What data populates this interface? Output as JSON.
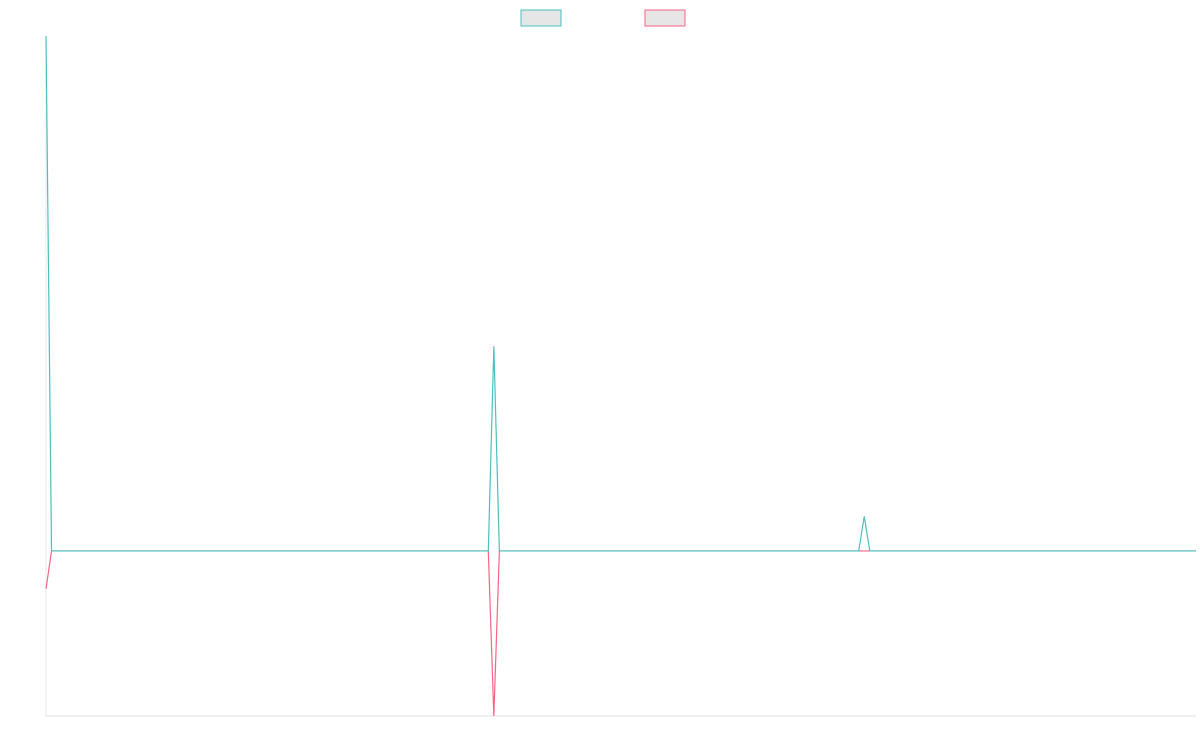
{
  "chart_data": {
    "type": "line",
    "x": [
      0,
      1,
      80,
      81,
      82,
      147,
      148,
      149,
      208
    ],
    "xlim": [
      0,
      208
    ],
    "ylim": [
      -100,
      312
    ],
    "legend": "top",
    "series": [
      {
        "color": "#ff6384",
        "values": [
          -23,
          0,
          0,
          -100,
          0,
          0,
          0,
          0,
          0
        ]
      },
      {
        "color": "#4bc0c0",
        "values": [
          312,
          0,
          0,
          124,
          0,
          0,
          21,
          0,
          0
        ]
      }
    ]
  }
}
